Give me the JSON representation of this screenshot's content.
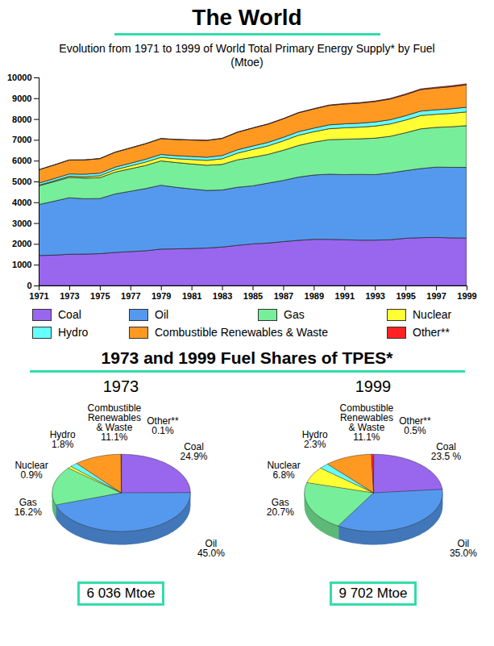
{
  "title": "The World",
  "section_title": "1973 and 1999 Fuel Shares of TPES*",
  "chart_data": [
    {
      "type": "area",
      "stacked": true,
      "grid": false,
      "legend": "bottom",
      "title": "Evolution from 1971 to 1999 of World Total Primary Energy Supply* by Fuel (Mtoe)",
      "x": [
        1971,
        1972,
        1973,
        1974,
        1975,
        1976,
        1977,
        1978,
        1979,
        1980,
        1981,
        1982,
        1983,
        1984,
        1985,
        1986,
        1987,
        1988,
        1989,
        1990,
        1991,
        1992,
        1993,
        1994,
        1995,
        1996,
        1997,
        1998,
        1999
      ],
      "xlim": [
        1971,
        1999
      ],
      "xticks": [
        1971,
        1973,
        1975,
        1977,
        1979,
        1981,
        1983,
        1985,
        1987,
        1989,
        1991,
        1993,
        1995,
        1997,
        1999
      ],
      "ylim": [
        0,
        10000
      ],
      "yticks": [
        0,
        1000,
        2000,
        3000,
        4000,
        5000,
        6000,
        7000,
        8000,
        9000,
        10000
      ],
      "series": [
        {
          "name": "Coal",
          "color": "#9966ee",
          "values": [
            1440,
            1460,
            1503,
            1510,
            1530,
            1590,
            1630,
            1670,
            1750,
            1760,
            1780,
            1800,
            1850,
            1930,
            2000,
            2040,
            2110,
            2170,
            2220,
            2220,
            2200,
            2180,
            2180,
            2200,
            2270,
            2300,
            2310,
            2290,
            2280
          ]
        },
        {
          "name": "Oil",
          "color": "#5599ee",
          "values": [
            2450,
            2590,
            2716,
            2660,
            2650,
            2810,
            2900,
            2990,
            3070,
            2960,
            2860,
            2770,
            2740,
            2790,
            2790,
            2880,
            2940,
            3040,
            3090,
            3130,
            3130,
            3160,
            3150,
            3210,
            3250,
            3320,
            3380,
            3390,
            3396
          ]
        },
        {
          "name": "Gas",
          "color": "#77ee99",
          "values": [
            900,
            940,
            978,
            990,
            1000,
            1050,
            1080,
            1110,
            1170,
            1190,
            1200,
            1210,
            1230,
            1320,
            1370,
            1380,
            1450,
            1520,
            1580,
            1660,
            1700,
            1710,
            1750,
            1760,
            1820,
            1910,
            1910,
            1950,
            2008
          ]
        },
        {
          "name": "Nuclear",
          "color": "#ffff33",
          "values": [
            29,
            40,
            54,
            70,
            95,
            115,
            140,
            165,
            170,
            185,
            215,
            235,
            270,
            320,
            380,
            410,
            450,
            490,
            500,
            525,
            550,
            560,
            580,
            595,
            610,
            640,
            630,
            645,
            660
          ]
        },
        {
          "name": "Hydro",
          "color": "#66ffff",
          "values": [
            100,
            104,
            109,
            118,
            121,
            123,
            126,
            133,
            138,
            143,
            146,
            149,
            155,
            160,
            163,
            166,
            168,
            172,
            172,
            184,
            190,
            190,
            200,
            201,
            210,
            213,
            215,
            219,
            223
          ]
        },
        {
          "name": "Combustible Renewables & Waste",
          "color": "#ff9922",
          "values": [
            640,
            655,
            670,
            685,
            700,
            715,
            730,
            745,
            760,
            775,
            790,
            805,
            820,
            840,
            860,
            875,
            890,
            905,
            920,
            935,
            950,
            965,
            980,
            995,
            1010,
            1030,
            1045,
            1060,
            1077
          ]
        },
        {
          "name": "Other**",
          "color": "#ff2222",
          "values": [
            5,
            5,
            6,
            6,
            7,
            7,
            8,
            9,
            9,
            10,
            11,
            12,
            13,
            14,
            15,
            16,
            17,
            19,
            20,
            22,
            24,
            26,
            28,
            31,
            34,
            37,
            40,
            44,
            49
          ]
        }
      ]
    },
    {
      "type": "pie",
      "title": "1973",
      "data_labels": true,
      "total": "6 036 Mtoe",
      "categories": [
        "Coal",
        "Oil",
        "Gas",
        "Nuclear",
        "Hydro",
        "Combustible Renewables & Waste",
        "Other**"
      ],
      "values": [
        24.9,
        45.0,
        16.2,
        0.9,
        1.8,
        11.1,
        0.1
      ],
      "value_labels": [
        "24.9%",
        "45.0%",
        "16.2%",
        "0.9%",
        "1.8%",
        "11.1%",
        "0.1%"
      ],
      "colors": [
        "#9966ee",
        "#5599ee",
        "#77ee99",
        "#ffff33",
        "#66ffff",
        "#ff9922",
        "#ff2222"
      ]
    },
    {
      "type": "pie",
      "title": "1999",
      "data_labels": true,
      "total": "9 702 Mtoe",
      "categories": [
        "Coal",
        "Oil",
        "Gas",
        "Nuclear",
        "Hydro",
        "Combustible Renewables & Waste",
        "Other**"
      ],
      "values": [
        23.5,
        35.0,
        20.7,
        6.8,
        2.3,
        11.1,
        0.5
      ],
      "value_labels": [
        "23.5 %",
        "35.0%",
        "20.7%",
        "6.8%",
        "2.3%",
        "11.1%",
        "0.5%"
      ],
      "colors": [
        "#9966ee",
        "#5599ee",
        "#77ee99",
        "#ffff33",
        "#66ffff",
        "#ff9922",
        "#ff2222"
      ]
    }
  ]
}
